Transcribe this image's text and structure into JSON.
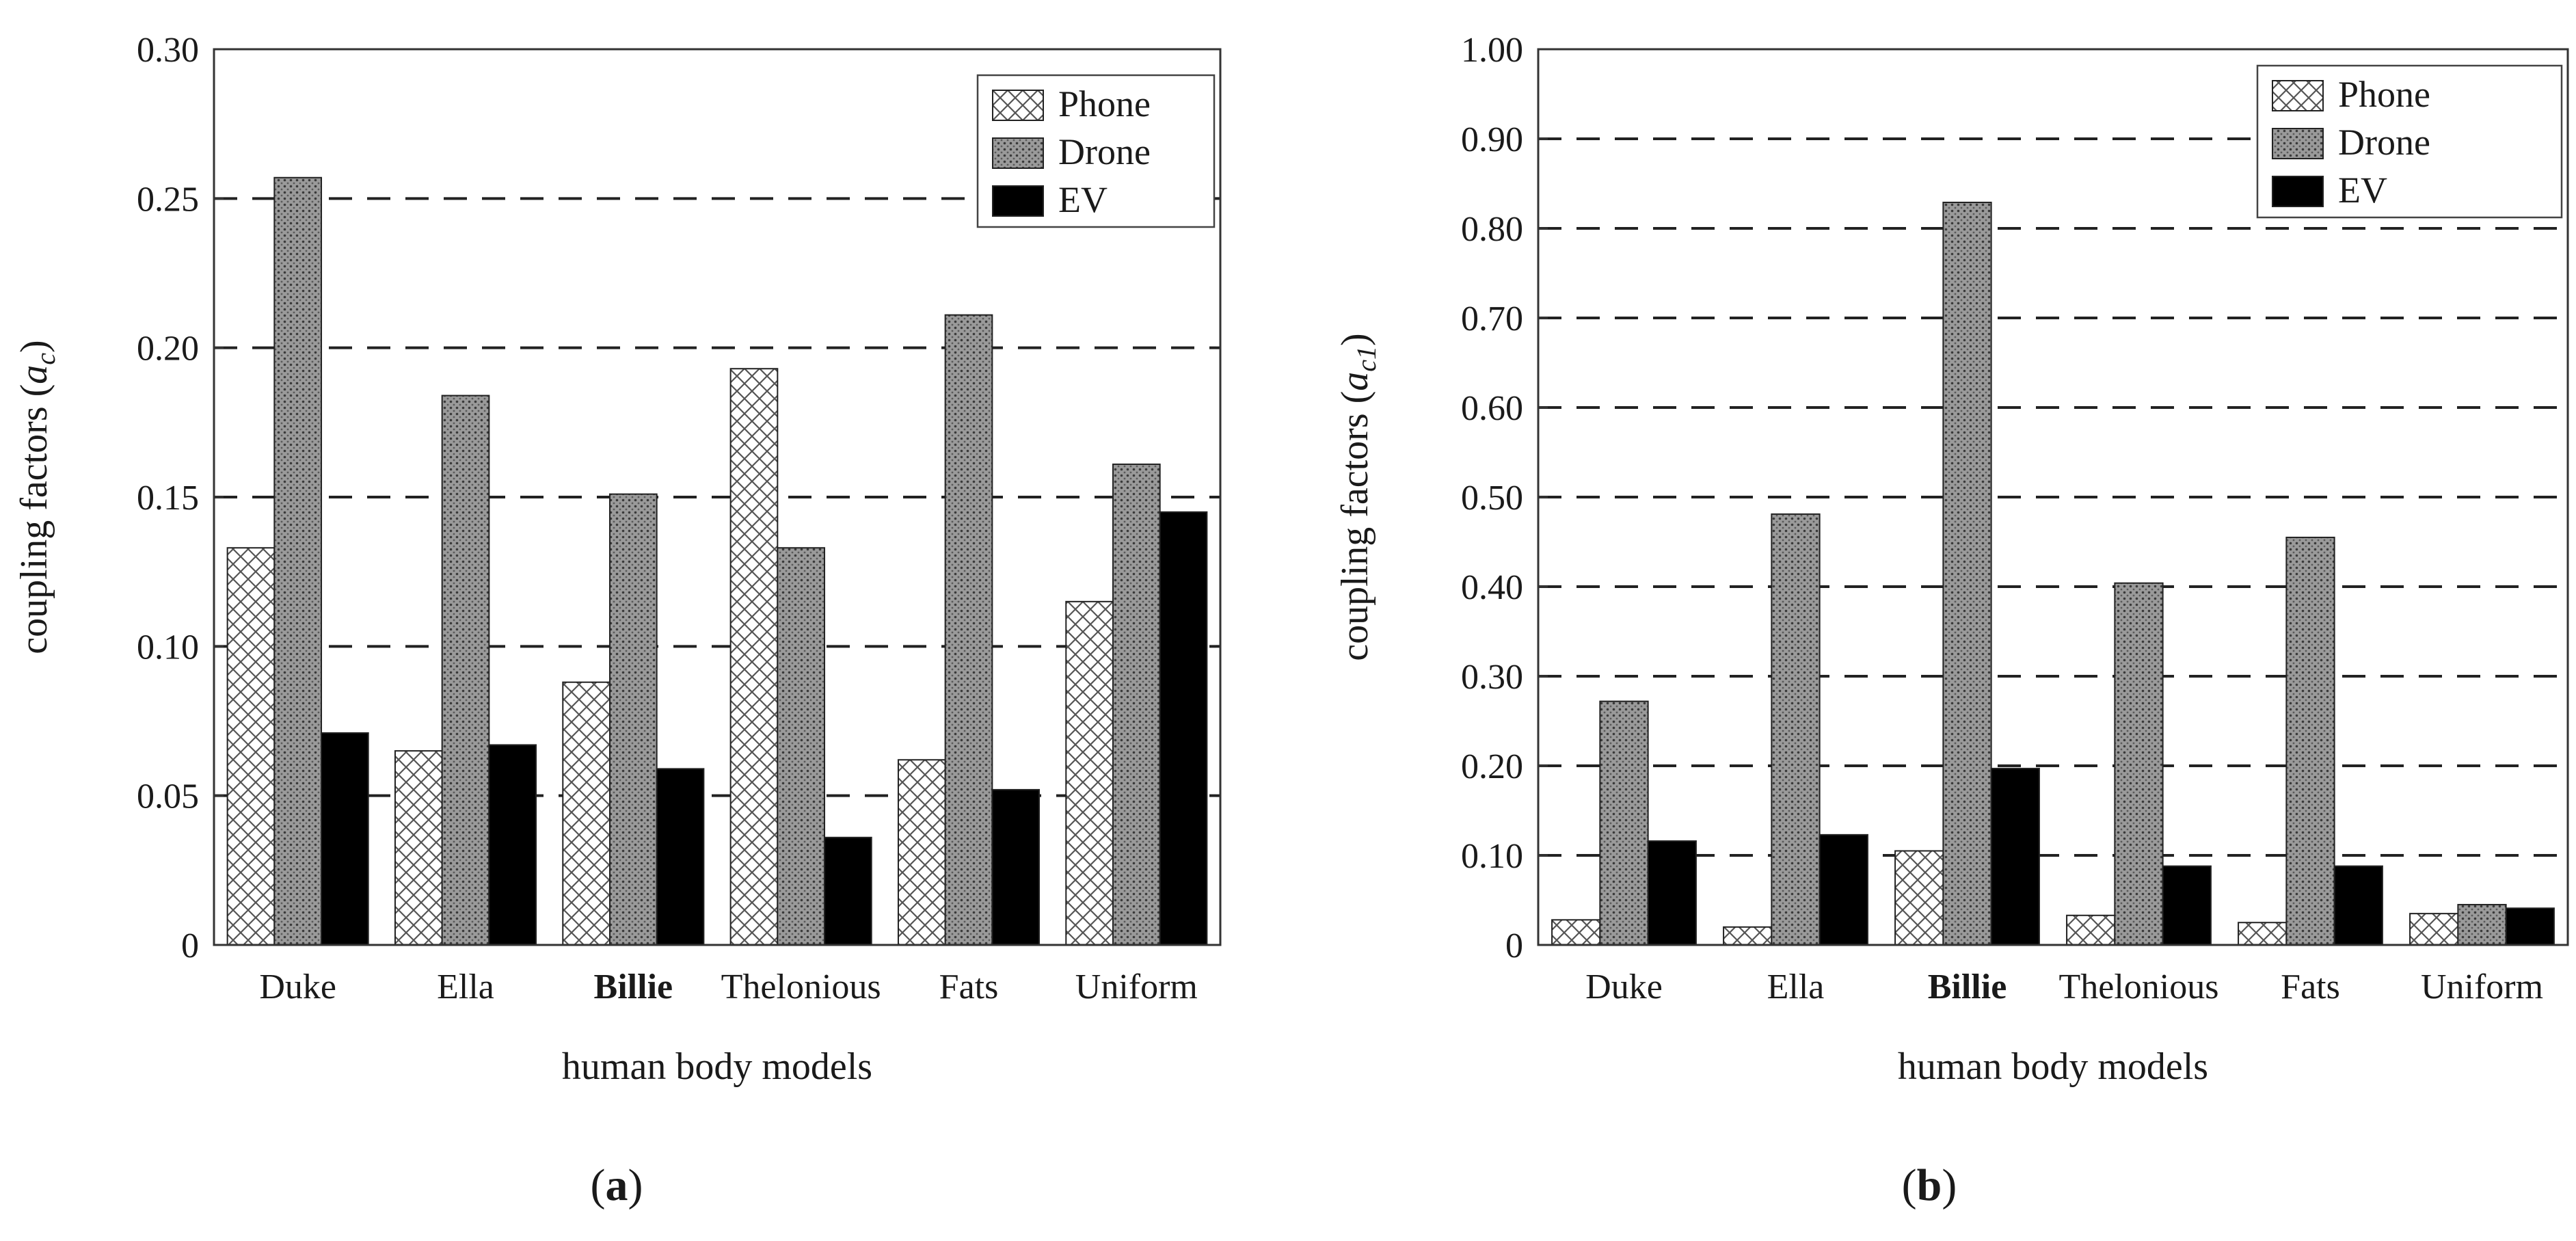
{
  "chart_data": [
    {
      "panel": "a",
      "type": "bar",
      "xlabel": "human body models",
      "ylabel_text": "coupling factors (",
      "ylabel_sym": "a",
      "ylabel_sub": "c",
      "ylabel_close": ")",
      "ylim": [
        0,
        0.3
      ],
      "yticks": [
        "0",
        "0.05",
        "0.10",
        "0.15",
        "0.20",
        "0.25",
        "0.30"
      ],
      "ytick_values": [
        0,
        0.05,
        0.1,
        0.15,
        0.2,
        0.25,
        0.3
      ],
      "grid_values": [
        0.05,
        0.1,
        0.15,
        0.2,
        0.25
      ],
      "legend_position": "top-right",
      "categories": [
        "Duke",
        "Ella",
        "Billie",
        "Thelonious",
        "Fats",
        "Uniform"
      ],
      "series": [
        {
          "name": "Phone",
          "values": [
            0.133,
            0.065,
            0.088,
            0.193,
            0.062,
            0.115
          ]
        },
        {
          "name": "Drone",
          "values": [
            0.257,
            0.184,
            0.151,
            0.133,
            0.211,
            0.161
          ]
        },
        {
          "name": "EV",
          "values": [
            0.071,
            0.067,
            0.059,
            0.036,
            0.052,
            0.145
          ]
        }
      ]
    },
    {
      "panel": "b",
      "type": "bar",
      "xlabel": "human body models",
      "ylabel_text": "coupling factors (",
      "ylabel_sym": "a",
      "ylabel_sub": "c1",
      "ylabel_close": ")",
      "ylim": [
        0,
        1.0
      ],
      "yticks": [
        "0",
        "0.10",
        "0.20",
        "0.30",
        "0.40",
        "0.50",
        "0.60",
        "0.70",
        "0.80",
        "0.90",
        "1.00"
      ],
      "ytick_values": [
        0,
        0.1,
        0.2,
        0.3,
        0.4,
        0.5,
        0.6,
        0.7,
        0.8,
        0.9,
        1.0
      ],
      "grid_values": [
        0.1,
        0.2,
        0.3,
        0.4,
        0.5,
        0.6,
        0.7,
        0.8,
        0.9
      ],
      "legend_position": "top-right",
      "categories": [
        "Duke",
        "Ella",
        "Billie",
        "Thelonious",
        "Fats",
        "Uniform"
      ],
      "series": [
        {
          "name": "Phone",
          "values": [
            0.028,
            0.02,
            0.105,
            0.033,
            0.025,
            0.035
          ]
        },
        {
          "name": "Drone",
          "values": [
            0.272,
            0.481,
            0.829,
            0.404,
            0.455,
            0.045
          ]
        },
        {
          "name": "EV",
          "values": [
            0.116,
            0.123,
            0.197,
            0.088,
            0.088,
            0.041
          ]
        }
      ]
    }
  ],
  "captions": {
    "a_open": "(",
    "a_letter": "a",
    "a_close": ")",
    "b_open": "(",
    "b_letter": "b",
    "b_close": ")"
  },
  "colors": {
    "phone_fill": "#ffffff",
    "phone_hatch": "#555555",
    "drone_fill": "#9a9a9a",
    "drone_dot": "#3a3a3a",
    "ev_fill": "#000000",
    "axis": "#333333",
    "grid": "#222222"
  }
}
